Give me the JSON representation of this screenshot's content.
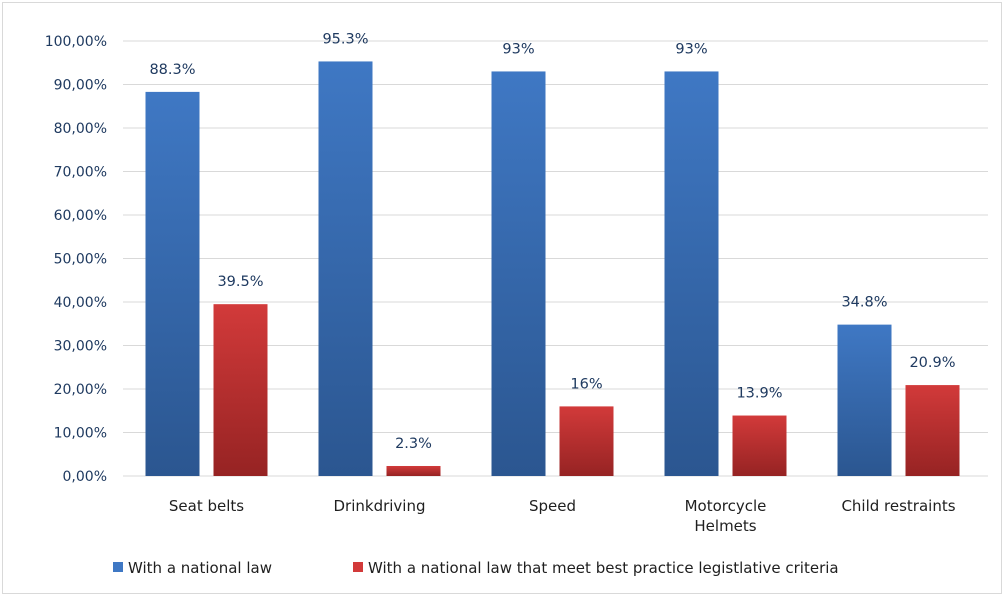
{
  "chart_data": {
    "type": "bar",
    "categories": [
      [
        "Seat belts"
      ],
      [
        "Drinkdriving"
      ],
      [
        "Speed"
      ],
      [
        "Motorcycle",
        "Helmets"
      ],
      [
        "Child restraints"
      ]
    ],
    "series": [
      {
        "name": "With a national law",
        "values": [
          88.3,
          95.3,
          93,
          93,
          34.8
        ],
        "labels": [
          "88.3%",
          "95.3%",
          "93%",
          "93%",
          "34.8%"
        ],
        "color": "#3f78c4",
        "color_dark": "#2b5690"
      },
      {
        "name": "With a national law that meet best practice legistlative  criteria",
        "values": [
          39.5,
          2.3,
          16,
          13.9,
          20.9
        ],
        "labels": [
          "39.5%",
          "2.3%",
          "16%",
          "13.9%",
          "20.9%"
        ],
        "color": "#d23a3a",
        "color_dark": "#962323"
      }
    ],
    "y_ticks": [
      "0,00%",
      "10,00%",
      "20,00%",
      "30,00%",
      "40,00%",
      "50,00%",
      "60,00%",
      "70,00%",
      "80,00%",
      "90,00%",
      "100,00%"
    ],
    "ylim": [
      0,
      100
    ],
    "grid": true,
    "legend_position": "bottom"
  }
}
